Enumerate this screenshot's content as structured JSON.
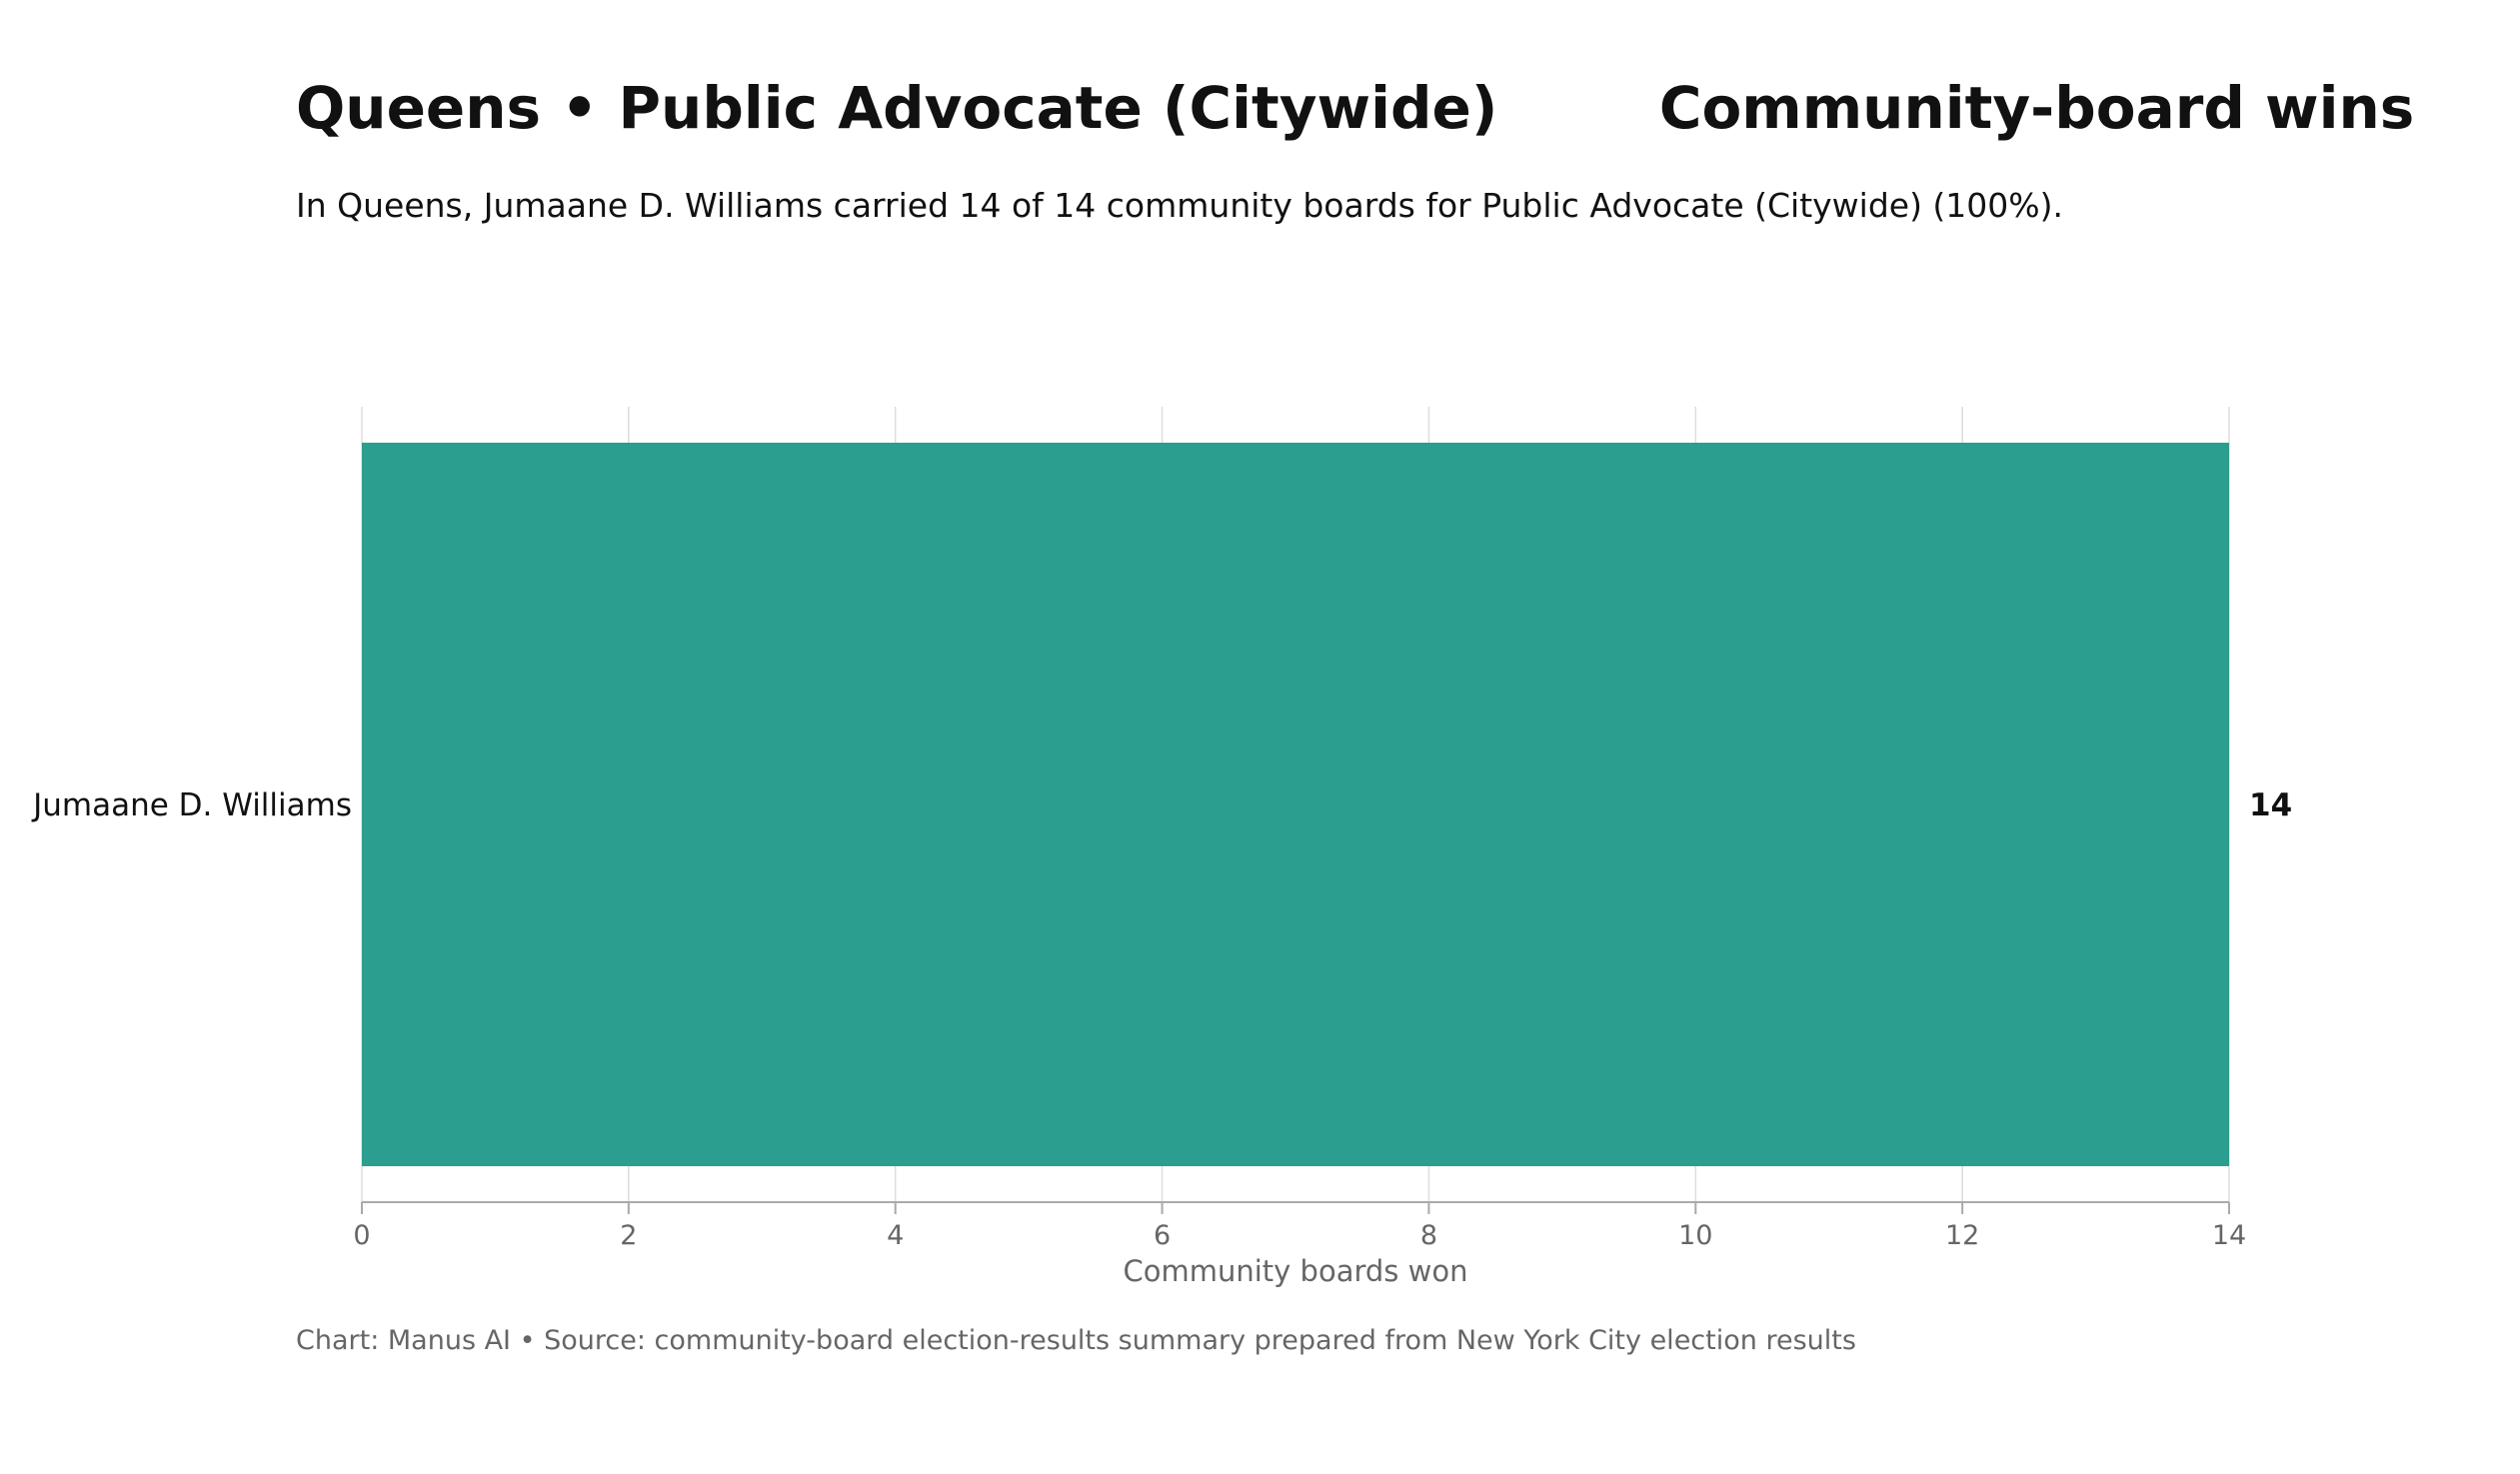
{
  "header": {
    "title": "Queens • Public Advocate (Citywide)        Community-board wins",
    "subtitle": "In Queens, Jumaane D. Williams carried 14 of 14 community boards for Public Advocate (Citywide) (100%)."
  },
  "footer": {
    "source": "Chart: Manus AI • Source: community-board election-results summary prepared from New York City election results"
  },
  "chart_data": {
    "type": "bar",
    "orientation": "horizontal",
    "categories": [
      "Jumaane D. Williams"
    ],
    "values": [
      14
    ],
    "value_labels": [
      "14"
    ],
    "xlabel": "Community boards won",
    "xlim": [
      0,
      14
    ],
    "xticks": [
      0,
      2,
      4,
      6,
      8,
      10,
      12,
      14
    ],
    "grid": "vertical",
    "colors": {
      "bar": "#2b9e8f",
      "grid": "#dddddd",
      "axis": "#aaaaaa",
      "tick_text": "#666666",
      "label_text": "#111111"
    }
  }
}
